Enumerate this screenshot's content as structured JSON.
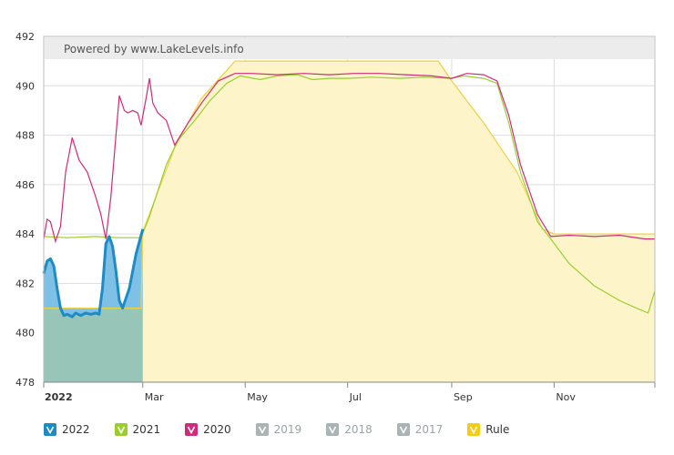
{
  "attribution": "Powered by www.LakeLevels.info",
  "colors": {
    "s2022": "#1e8bc3",
    "s2022_fill": "#7fc1e6",
    "s2021": "#9acd32",
    "s2020": "#cc2c7a",
    "rule": "#ecd34a",
    "rule_fill": "#fdf5c9",
    "pre_fill": "#97c5b7",
    "disabled": "#aab4b5",
    "grid": "#dddddd",
    "axis": "#888888"
  },
  "legend": [
    {
      "label": "2022",
      "color": "#1e8bc3",
      "enabled": true
    },
    {
      "label": "2021",
      "color": "#9acd32",
      "enabled": true
    },
    {
      "label": "2020",
      "color": "#cc2c7a",
      "enabled": true
    },
    {
      "label": "2019",
      "color": "#aab4b5",
      "enabled": false
    },
    {
      "label": "2018",
      "color": "#aab4b5",
      "enabled": false
    },
    {
      "label": "2017",
      "color": "#aab4b5",
      "enabled": false
    },
    {
      "label": "Rule",
      "color": "#f5cc1a",
      "enabled": true
    }
  ],
  "chart_data": {
    "type": "line",
    "title": "",
    "xlabel": "",
    "ylabel": "",
    "ylim": [
      478,
      492
    ],
    "yticks": [
      478,
      480,
      482,
      484,
      486,
      488,
      490,
      492
    ],
    "xlim": [
      "2022-01-01",
      "2022-12-31"
    ],
    "xticks": [
      {
        "date": "2022-01-01",
        "label": "2022",
        "bold": true
      },
      {
        "date": "2022-03-01",
        "label": "Mar"
      },
      {
        "date": "2022-05-01",
        "label": "May"
      },
      {
        "date": "2022-07-01",
        "label": "Jul"
      },
      {
        "date": "2022-09-01",
        "label": "Sep"
      },
      {
        "date": "2022-11-01",
        "label": "Nov"
      }
    ],
    "grid": true,
    "legend_position": "bottom",
    "series": [
      {
        "name": "Rule",
        "key": "rule",
        "area": true,
        "points": [
          [
            "2022-01-01",
            481.0
          ],
          [
            "2022-02-28",
            481.0
          ],
          [
            "2022-03-01",
            484.1
          ],
          [
            "2022-03-20",
            487.5
          ],
          [
            "2022-04-05",
            489.5
          ],
          [
            "2022-04-25",
            491.0
          ],
          [
            "2022-08-24",
            491.0
          ],
          [
            "2022-09-01",
            490.2
          ],
          [
            "2022-09-20",
            488.5
          ],
          [
            "2022-10-10",
            486.5
          ],
          [
            "2022-10-25",
            484.2
          ],
          [
            "2022-11-01",
            484.0
          ],
          [
            "2022-12-31",
            484.0
          ]
        ]
      },
      {
        "name": "2022",
        "key": "s2022",
        "area": true,
        "points": [
          [
            "2022-01-01",
            482.4
          ],
          [
            "2022-01-03",
            482.9
          ],
          [
            "2022-01-05",
            483.0
          ],
          [
            "2022-01-07",
            482.7
          ],
          [
            "2022-01-09",
            481.8
          ],
          [
            "2022-01-11",
            481.0
          ],
          [
            "2022-01-13",
            480.7
          ],
          [
            "2022-01-15",
            480.75
          ],
          [
            "2022-01-18",
            480.65
          ],
          [
            "2022-01-20",
            480.8
          ],
          [
            "2022-01-23",
            480.7
          ],
          [
            "2022-01-26",
            480.8
          ],
          [
            "2022-01-29",
            480.75
          ],
          [
            "2022-02-01",
            480.8
          ],
          [
            "2022-02-03",
            480.75
          ],
          [
            "2022-02-05",
            481.8
          ],
          [
            "2022-02-07",
            483.6
          ],
          [
            "2022-02-09",
            483.9
          ],
          [
            "2022-02-11",
            483.5
          ],
          [
            "2022-02-13",
            482.5
          ],
          [
            "2022-02-15",
            481.3
          ],
          [
            "2022-02-17",
            481.0
          ],
          [
            "2022-02-19",
            481.4
          ],
          [
            "2022-02-21",
            481.8
          ],
          [
            "2022-02-23",
            482.5
          ],
          [
            "2022-02-25",
            483.2
          ],
          [
            "2022-02-27",
            483.7
          ],
          [
            "2022-03-01",
            484.2
          ]
        ]
      },
      {
        "name": "2021",
        "key": "s2021",
        "area": false,
        "points": [
          [
            "2022-01-01",
            483.9
          ],
          [
            "2022-01-15",
            483.85
          ],
          [
            "2022-02-01",
            483.9
          ],
          [
            "2022-02-15",
            483.85
          ],
          [
            "2022-02-28",
            483.85
          ],
          [
            "2022-03-05",
            484.7
          ],
          [
            "2022-03-15",
            486.8
          ],
          [
            "2022-03-22",
            487.8
          ],
          [
            "2022-04-01",
            488.6
          ],
          [
            "2022-04-10",
            489.4
          ],
          [
            "2022-04-20",
            490.1
          ],
          [
            "2022-04-28",
            490.4
          ],
          [
            "2022-05-10",
            490.25
          ],
          [
            "2022-05-20",
            490.4
          ],
          [
            "2022-06-01",
            490.45
          ],
          [
            "2022-06-10",
            490.25
          ],
          [
            "2022-06-20",
            490.3
          ],
          [
            "2022-07-01",
            490.3
          ],
          [
            "2022-07-15",
            490.35
          ],
          [
            "2022-08-01",
            490.3
          ],
          [
            "2022-08-15",
            490.35
          ],
          [
            "2022-09-01",
            490.3
          ],
          [
            "2022-09-08",
            490.4
          ],
          [
            "2022-09-20",
            490.3
          ],
          [
            "2022-09-28",
            490.1
          ],
          [
            "2022-10-05",
            488.5
          ],
          [
            "2022-10-12",
            486.5
          ],
          [
            "2022-10-22",
            484.5
          ],
          [
            "2022-10-30",
            483.8
          ],
          [
            "2022-11-10",
            482.8
          ],
          [
            "2022-11-25",
            481.9
          ],
          [
            "2022-12-10",
            481.3
          ],
          [
            "2022-12-20",
            481.0
          ],
          [
            "2022-12-27",
            480.8
          ],
          [
            "2022-12-31",
            481.7
          ]
        ]
      },
      {
        "name": "2020",
        "key": "s2020",
        "area": false,
        "points": [
          [
            "2022-01-01",
            483.8
          ],
          [
            "2022-01-03",
            484.6
          ],
          [
            "2022-01-05",
            484.5
          ],
          [
            "2022-01-08",
            483.7
          ],
          [
            "2022-01-11",
            484.3
          ],
          [
            "2022-01-14",
            486.5
          ],
          [
            "2022-01-18",
            487.9
          ],
          [
            "2022-01-22",
            487.0
          ],
          [
            "2022-01-27",
            486.5
          ],
          [
            "2022-02-01",
            485.5
          ],
          [
            "2022-02-04",
            484.8
          ],
          [
            "2022-02-07",
            483.8
          ],
          [
            "2022-02-10",
            485.5
          ],
          [
            "2022-02-13",
            488.0
          ],
          [
            "2022-02-15",
            489.6
          ],
          [
            "2022-02-18",
            489.0
          ],
          [
            "2022-02-20",
            488.9
          ],
          [
            "2022-02-23",
            489.0
          ],
          [
            "2022-02-26",
            488.9
          ],
          [
            "2022-02-28",
            488.4
          ],
          [
            "2022-03-03",
            489.5
          ],
          [
            "2022-03-05",
            490.3
          ],
          [
            "2022-03-07",
            489.3
          ],
          [
            "2022-03-10",
            488.9
          ],
          [
            "2022-03-15",
            488.6
          ],
          [
            "2022-03-20",
            487.6
          ],
          [
            "2022-03-28",
            488.5
          ],
          [
            "2022-04-05",
            489.3
          ],
          [
            "2022-04-15",
            490.2
          ],
          [
            "2022-04-25",
            490.5
          ],
          [
            "2022-05-05",
            490.5
          ],
          [
            "2022-05-20",
            490.45
          ],
          [
            "2022-06-05",
            490.5
          ],
          [
            "2022-06-20",
            490.45
          ],
          [
            "2022-07-05",
            490.5
          ],
          [
            "2022-07-20",
            490.5
          ],
          [
            "2022-08-05",
            490.45
          ],
          [
            "2022-08-20",
            490.4
          ],
          [
            "2022-09-01",
            490.3
          ],
          [
            "2022-09-10",
            490.5
          ],
          [
            "2022-09-20",
            490.45
          ],
          [
            "2022-09-28",
            490.2
          ],
          [
            "2022-10-05",
            488.8
          ],
          [
            "2022-10-12",
            486.8
          ],
          [
            "2022-10-22",
            484.8
          ],
          [
            "2022-10-30",
            483.9
          ],
          [
            "2022-11-10",
            483.95
          ],
          [
            "2022-11-25",
            483.9
          ],
          [
            "2022-12-10",
            483.95
          ],
          [
            "2022-12-25",
            483.8
          ],
          [
            "2022-12-31",
            483.8
          ]
        ]
      }
    ]
  }
}
